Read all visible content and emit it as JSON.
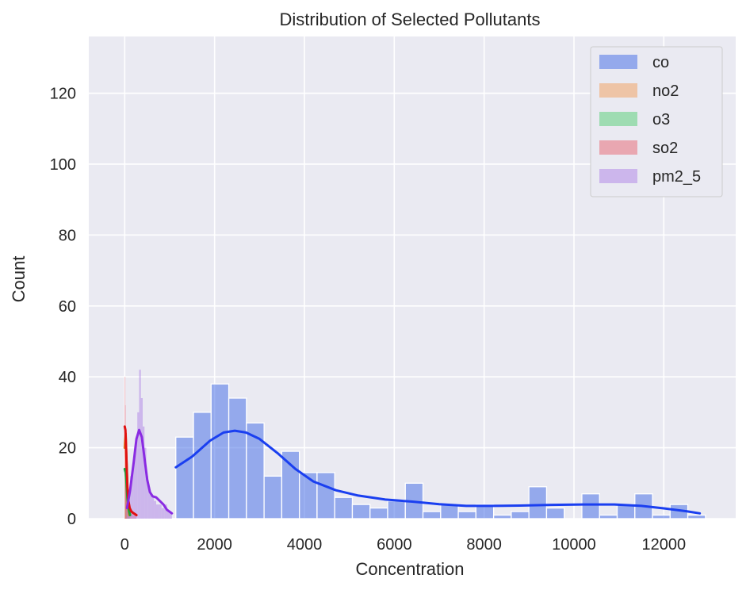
{
  "chart_data": {
    "type": "histogram",
    "title": "Distribution of Selected Pollutants",
    "xlabel": "Concentration",
    "ylabel": "Count",
    "xlim": [
      -800,
      13600
    ],
    "ylim": [
      0,
      136
    ],
    "xticks": [
      0,
      2000,
      4000,
      6000,
      8000,
      10000,
      12000
    ],
    "yticks": [
      0,
      20,
      40,
      60,
      80,
      100,
      120
    ],
    "grid": true,
    "legend_position": "top-right",
    "series": [
      {
        "name": "co",
        "color": "#4c72e8",
        "kde_color": "#1a3ff0",
        "bin_width": 393,
        "bins": [
          {
            "x0": 1137,
            "count": 23
          },
          {
            "x0": 1530,
            "count": 30
          },
          {
            "x0": 1923,
            "count": 38
          },
          {
            "x0": 2316,
            "count": 34
          },
          {
            "x0": 2709,
            "count": 27
          },
          {
            "x0": 3102,
            "count": 12
          },
          {
            "x0": 3495,
            "count": 19
          },
          {
            "x0": 3888,
            "count": 13
          },
          {
            "x0": 4281,
            "count": 13
          },
          {
            "x0": 4674,
            "count": 6
          },
          {
            "x0": 5067,
            "count": 4
          },
          {
            "x0": 5460,
            "count": 3
          },
          {
            "x0": 5853,
            "count": 5
          },
          {
            "x0": 6246,
            "count": 10
          },
          {
            "x0": 6639,
            "count": 2
          },
          {
            "x0": 7032,
            "count": 4
          },
          {
            "x0": 7425,
            "count": 2
          },
          {
            "x0": 7818,
            "count": 4
          },
          {
            "x0": 8211,
            "count": 1
          },
          {
            "x0": 8604,
            "count": 2
          },
          {
            "x0": 8997,
            "count": 9
          },
          {
            "x0": 9390,
            "count": 3
          },
          {
            "x0": 9783,
            "count": 0
          },
          {
            "x0": 10176,
            "count": 7
          },
          {
            "x0": 10569,
            "count": 1
          },
          {
            "x0": 10962,
            "count": 4
          },
          {
            "x0": 11355,
            "count": 7
          },
          {
            "x0": 11748,
            "count": 1
          },
          {
            "x0": 12141,
            "count": 4
          },
          {
            "x0": 12534,
            "count": 1
          }
        ],
        "kde": [
          [
            1137,
            14.5
          ],
          [
            1500,
            17.5
          ],
          [
            1900,
            22
          ],
          [
            2200,
            24.3
          ],
          [
            2450,
            24.8
          ],
          [
            2700,
            24.3
          ],
          [
            3000,
            22.5
          ],
          [
            3400,
            18.5
          ],
          [
            3800,
            14
          ],
          [
            4200,
            10.5
          ],
          [
            4700,
            8
          ],
          [
            5200,
            6.5
          ],
          [
            5800,
            5.4
          ],
          [
            6400,
            4.8
          ],
          [
            7000,
            4.1
          ],
          [
            7600,
            3.6
          ],
          [
            8200,
            3.6
          ],
          [
            8800,
            3.7
          ],
          [
            9500,
            3.9
          ],
          [
            10200,
            4
          ],
          [
            10900,
            4
          ],
          [
            11500,
            3.6
          ],
          [
            12000,
            2.9
          ],
          [
            12500,
            2.1
          ],
          [
            12800,
            1.5
          ]
        ]
      },
      {
        "name": "no2",
        "color": "#f0a468",
        "kde_color": "#e07b1a",
        "bins": [
          [
            0,
            8,
            20
          ],
          [
            8,
            16,
            22
          ],
          [
            16,
            24,
            26
          ],
          [
            24,
            32,
            18
          ],
          [
            32,
            40,
            14
          ],
          [
            40,
            48,
            10
          ],
          [
            48,
            56,
            8
          ],
          [
            56,
            64,
            6
          ],
          [
            64,
            72,
            4
          ],
          [
            72,
            80,
            3
          ],
          [
            80,
            90,
            2
          ],
          [
            90,
            100,
            1
          ]
        ],
        "kde": [
          [
            0,
            20
          ],
          [
            20,
            24
          ],
          [
            40,
            16
          ],
          [
            60,
            8
          ],
          [
            80,
            3
          ],
          [
            100,
            1
          ]
        ]
      },
      {
        "name": "o3",
        "color": "#5fcf7e",
        "kde_color": "#17a33b",
        "bins": [
          [
            0,
            10,
            14
          ],
          [
            10,
            20,
            12
          ],
          [
            20,
            30,
            12
          ],
          [
            30,
            40,
            10
          ],
          [
            40,
            50,
            8
          ],
          [
            50,
            60,
            6
          ],
          [
            60,
            70,
            5
          ],
          [
            70,
            80,
            4
          ],
          [
            80,
            90,
            3
          ],
          [
            90,
            100,
            2
          ],
          [
            100,
            110,
            1
          ],
          [
            110,
            120,
            1
          ]
        ],
        "kde": [
          [
            0,
            14
          ],
          [
            20,
            13
          ],
          [
            40,
            10
          ],
          [
            60,
            6
          ],
          [
            80,
            3.5
          ],
          [
            100,
            2
          ],
          [
            120,
            1
          ]
        ]
      },
      {
        "name": "so2",
        "color": "#e8707c",
        "kde_color": "#e01010",
        "bins": [
          [
            0,
            6,
            40
          ],
          [
            6,
            12,
            32
          ],
          [
            12,
            18,
            26
          ],
          [
            18,
            24,
            22
          ],
          [
            24,
            30,
            18
          ],
          [
            30,
            36,
            14
          ],
          [
            36,
            42,
            10
          ],
          [
            42,
            48,
            7
          ],
          [
            48,
            60,
            5
          ],
          [
            60,
            80,
            4
          ],
          [
            80,
            120,
            3
          ],
          [
            120,
            180,
            2
          ],
          [
            180,
            260,
            1
          ]
        ],
        "kde": [
          [
            0,
            26
          ],
          [
            15,
            25
          ],
          [
            30,
            20
          ],
          [
            45,
            14
          ],
          [
            60,
            9
          ],
          [
            80,
            5
          ],
          [
            110,
            3
          ],
          [
            150,
            2
          ],
          [
            200,
            1.5
          ],
          [
            260,
            1
          ]
        ]
      },
      {
        "name": "pm2_5",
        "color": "#b28be8",
        "kde_color": "#8a2be2",
        "bins": [
          [
            40,
            80,
            4
          ],
          [
            80,
            120,
            8
          ],
          [
            120,
            160,
            12
          ],
          [
            160,
            200,
            14
          ],
          [
            200,
            240,
            18
          ],
          [
            240,
            280,
            22
          ],
          [
            280,
            320,
            30
          ],
          [
            320,
            360,
            42
          ],
          [
            360,
            400,
            34
          ],
          [
            400,
            440,
            26
          ],
          [
            440,
            480,
            20
          ],
          [
            480,
            520,
            12
          ],
          [
            520,
            560,
            9
          ],
          [
            560,
            600,
            7
          ],
          [
            600,
            650,
            6
          ],
          [
            650,
            700,
            5
          ],
          [
            700,
            760,
            4
          ],
          [
            760,
            820,
            4
          ],
          [
            820,
            880,
            3
          ],
          [
            880,
            940,
            4
          ],
          [
            940,
            1000,
            2
          ],
          [
            1000,
            1050,
            2
          ]
        ],
        "kde": [
          [
            50,
            3
          ],
          [
            120,
            8
          ],
          [
            200,
            16
          ],
          [
            260,
            22.5
          ],
          [
            320,
            25
          ],
          [
            380,
            23
          ],
          [
            440,
            17
          ],
          [
            500,
            11
          ],
          [
            560,
            7.5
          ],
          [
            620,
            6.3
          ],
          [
            700,
            6
          ],
          [
            780,
            5
          ],
          [
            860,
            4
          ],
          [
            940,
            2.5
          ],
          [
            1050,
            1.5
          ]
        ]
      }
    ]
  }
}
